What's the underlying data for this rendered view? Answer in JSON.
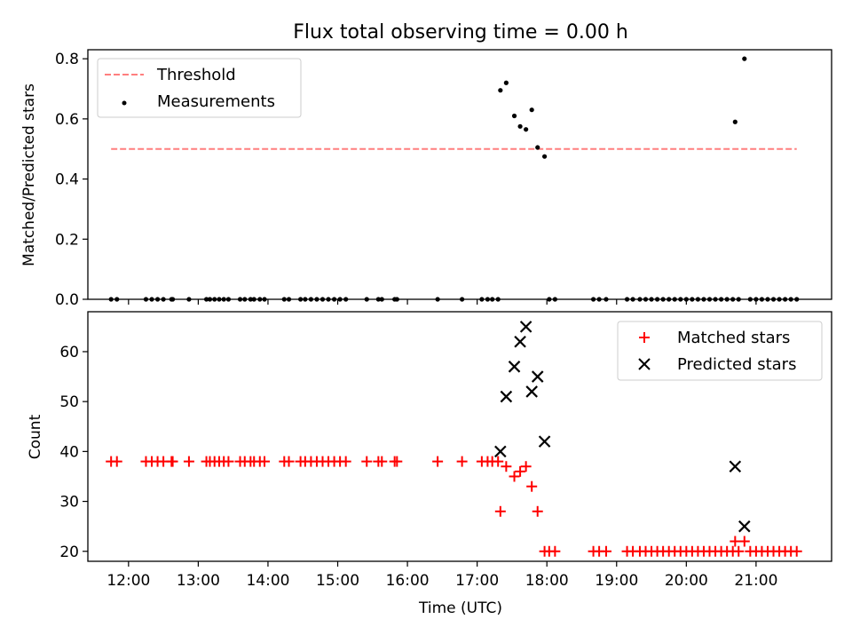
{
  "title": "Flux total observing time = 0.00 h",
  "xlabel": "Time (UTC)",
  "x_ticks": [
    "12:00",
    "13:00",
    "14:00",
    "15:00",
    "16:00",
    "17:00",
    "18:00",
    "19:00",
    "20:00",
    "21:00"
  ],
  "chart_data": [
    {
      "type": "scatter",
      "ylabel": "Matched/Predicted stars",
      "xlim": [
        "11:25",
        "22:05"
      ],
      "ylim": [
        0,
        0.83
      ],
      "y_ticks": [
        "0.0",
        "0.2",
        "0.4",
        "0.6",
        "0.8"
      ],
      "legend": {
        "placement": "top-left",
        "entries": [
          "Threshold",
          "Measurements"
        ]
      },
      "threshold": {
        "name": "Threshold",
        "value": 0.5,
        "x_range": [
          "11:45",
          "21:35"
        ],
        "color": "#ff7f7f",
        "style": "dashed"
      },
      "series": [
        {
          "name": "Measurements",
          "color": "#000000",
          "points": [
            [
              "11:45",
              0
            ],
            [
              "11:50",
              0
            ],
            [
              "12:15",
              0
            ],
            [
              "12:20",
              0
            ],
            [
              "12:25",
              0
            ],
            [
              "12:30",
              0
            ],
            [
              "12:37",
              0
            ],
            [
              "12:38",
              0
            ],
            [
              "12:52",
              0
            ],
            [
              "13:07",
              0
            ],
            [
              "13:10",
              0
            ],
            [
              "13:14",
              0
            ],
            [
              "13:18",
              0
            ],
            [
              "13:22",
              0
            ],
            [
              "13:26",
              0
            ],
            [
              "13:36",
              0
            ],
            [
              "13:40",
              0
            ],
            [
              "13:45",
              0
            ],
            [
              "13:48",
              0
            ],
            [
              "13:53",
              0
            ],
            [
              "13:57",
              0
            ],
            [
              "14:14",
              0
            ],
            [
              "14:18",
              0
            ],
            [
              "14:28",
              0
            ],
            [
              "14:32",
              0
            ],
            [
              "14:37",
              0
            ],
            [
              "14:42",
              0
            ],
            [
              "14:47",
              0
            ],
            [
              "14:52",
              0
            ],
            [
              "14:57",
              0
            ],
            [
              "15:02",
              0
            ],
            [
              "15:07",
              0
            ],
            [
              "15:25",
              0
            ],
            [
              "15:35",
              0
            ],
            [
              "15:38",
              0
            ],
            [
              "15:49",
              0
            ],
            [
              "15:51",
              0
            ],
            [
              "16:26",
              0
            ],
            [
              "16:47",
              0
            ],
            [
              "17:04",
              0
            ],
            [
              "17:09",
              0
            ],
            [
              "17:13",
              0
            ],
            [
              "17:18",
              0
            ],
            [
              "17:20",
              0.695
            ],
            [
              "17:25",
              0.72
            ],
            [
              "17:32",
              0.61
            ],
            [
              "17:37",
              0.575
            ],
            [
              "17:42",
              0.565
            ],
            [
              "17:47",
              0.63
            ],
            [
              "17:52",
              0.505
            ],
            [
              "17:58",
              0.475
            ],
            [
              "18:02",
              0
            ],
            [
              "18:07",
              0
            ],
            [
              "18:40",
              0
            ],
            [
              "18:45",
              0
            ],
            [
              "18:51",
              0
            ],
            [
              "19:09",
              0
            ],
            [
              "19:14",
              0
            ],
            [
              "19:20",
              0
            ],
            [
              "19:25",
              0
            ],
            [
              "19:30",
              0
            ],
            [
              "19:35",
              0
            ],
            [
              "19:40",
              0
            ],
            [
              "19:45",
              0
            ],
            [
              "19:50",
              0
            ],
            [
              "19:55",
              0
            ],
            [
              "20:00",
              0
            ],
            [
              "20:05",
              0
            ],
            [
              "20:10",
              0
            ],
            [
              "20:15",
              0
            ],
            [
              "20:20",
              0
            ],
            [
              "20:25",
              0
            ],
            [
              "20:30",
              0
            ],
            [
              "20:35",
              0
            ],
            [
              "20:40",
              0
            ],
            [
              "20:45",
              0
            ],
            [
              "20:42",
              0.59
            ],
            [
              "20:50",
              0.8
            ],
            [
              "20:55",
              0
            ],
            [
              "21:00",
              0
            ],
            [
              "21:05",
              0
            ],
            [
              "21:10",
              0
            ],
            [
              "21:15",
              0
            ],
            [
              "21:20",
              0
            ],
            [
              "21:25",
              0
            ],
            [
              "21:30",
              0
            ],
            [
              "21:35",
              0
            ]
          ]
        }
      ]
    },
    {
      "type": "scatter",
      "ylabel": "Count",
      "xlim": [
        "11:25",
        "22:05"
      ],
      "ylim": [
        18,
        68
      ],
      "y_ticks": [
        "20",
        "30",
        "40",
        "50",
        "60"
      ],
      "legend": {
        "placement": "top-right",
        "entries": [
          "Matched stars",
          "Predicted stars"
        ]
      },
      "series": [
        {
          "name": "Matched stars",
          "marker": "plus",
          "color": "#ff0000",
          "points": [
            [
              "11:45",
              38
            ],
            [
              "11:50",
              38
            ],
            [
              "12:15",
              38
            ],
            [
              "12:20",
              38
            ],
            [
              "12:25",
              38
            ],
            [
              "12:30",
              38
            ],
            [
              "12:37",
              38
            ],
            [
              "12:38",
              38
            ],
            [
              "12:52",
              38
            ],
            [
              "13:07",
              38
            ],
            [
              "13:10",
              38
            ],
            [
              "13:14",
              38
            ],
            [
              "13:18",
              38
            ],
            [
              "13:22",
              38
            ],
            [
              "13:26",
              38
            ],
            [
              "13:36",
              38
            ],
            [
              "13:40",
              38
            ],
            [
              "13:45",
              38
            ],
            [
              "13:48",
              38
            ],
            [
              "13:53",
              38
            ],
            [
              "13:57",
              38
            ],
            [
              "14:14",
              38
            ],
            [
              "14:18",
              38
            ],
            [
              "14:28",
              38
            ],
            [
              "14:32",
              38
            ],
            [
              "14:37",
              38
            ],
            [
              "14:42",
              38
            ],
            [
              "14:47",
              38
            ],
            [
              "14:52",
              38
            ],
            [
              "14:57",
              38
            ],
            [
              "15:02",
              38
            ],
            [
              "15:07",
              38
            ],
            [
              "15:25",
              38
            ],
            [
              "15:35",
              38
            ],
            [
              "15:38",
              38
            ],
            [
              "15:49",
              38
            ],
            [
              "15:51",
              38
            ],
            [
              "16:26",
              38
            ],
            [
              "16:47",
              38
            ],
            [
              "17:04",
              38
            ],
            [
              "17:09",
              38
            ],
            [
              "17:13",
              38
            ],
            [
              "17:18",
              38
            ],
            [
              "17:20",
              28
            ],
            [
              "17:25",
              37
            ],
            [
              "17:32",
              35
            ],
            [
              "17:37",
              36
            ],
            [
              "17:42",
              37
            ],
            [
              "17:47",
              33
            ],
            [
              "17:52",
              28
            ],
            [
              "17:58",
              20
            ],
            [
              "18:02",
              20
            ],
            [
              "18:07",
              20
            ],
            [
              "18:40",
              20
            ],
            [
              "18:45",
              20
            ],
            [
              "18:51",
              20
            ],
            [
              "19:09",
              20
            ],
            [
              "19:14",
              20
            ],
            [
              "19:20",
              20
            ],
            [
              "19:25",
              20
            ],
            [
              "19:30",
              20
            ],
            [
              "19:35",
              20
            ],
            [
              "19:40",
              20
            ],
            [
              "19:45",
              20
            ],
            [
              "19:50",
              20
            ],
            [
              "19:55",
              20
            ],
            [
              "20:00",
              20
            ],
            [
              "20:05",
              20
            ],
            [
              "20:10",
              20
            ],
            [
              "20:15",
              20
            ],
            [
              "20:20",
              20
            ],
            [
              "20:25",
              20
            ],
            [
              "20:30",
              20
            ],
            [
              "20:35",
              20
            ],
            [
              "20:40",
              20
            ],
            [
              "20:45",
              20
            ],
            [
              "20:42",
              22
            ],
            [
              "20:50",
              22
            ],
            [
              "20:55",
              20
            ],
            [
              "21:00",
              20
            ],
            [
              "21:05",
              20
            ],
            [
              "21:10",
              20
            ],
            [
              "21:15",
              20
            ],
            [
              "21:20",
              20
            ],
            [
              "21:25",
              20
            ],
            [
              "21:30",
              20
            ],
            [
              "21:35",
              20
            ]
          ]
        },
        {
          "name": "Predicted stars",
          "marker": "x",
          "color": "#000000",
          "points": [
            [
              "17:20",
              40
            ],
            [
              "17:25",
              51
            ],
            [
              "17:32",
              57
            ],
            [
              "17:37",
              62
            ],
            [
              "17:42",
              65
            ],
            [
              "17:47",
              52
            ],
            [
              "17:52",
              55
            ],
            [
              "17:58",
              42
            ],
            [
              "20:42",
              37
            ],
            [
              "20:50",
              25
            ]
          ]
        }
      ]
    }
  ]
}
